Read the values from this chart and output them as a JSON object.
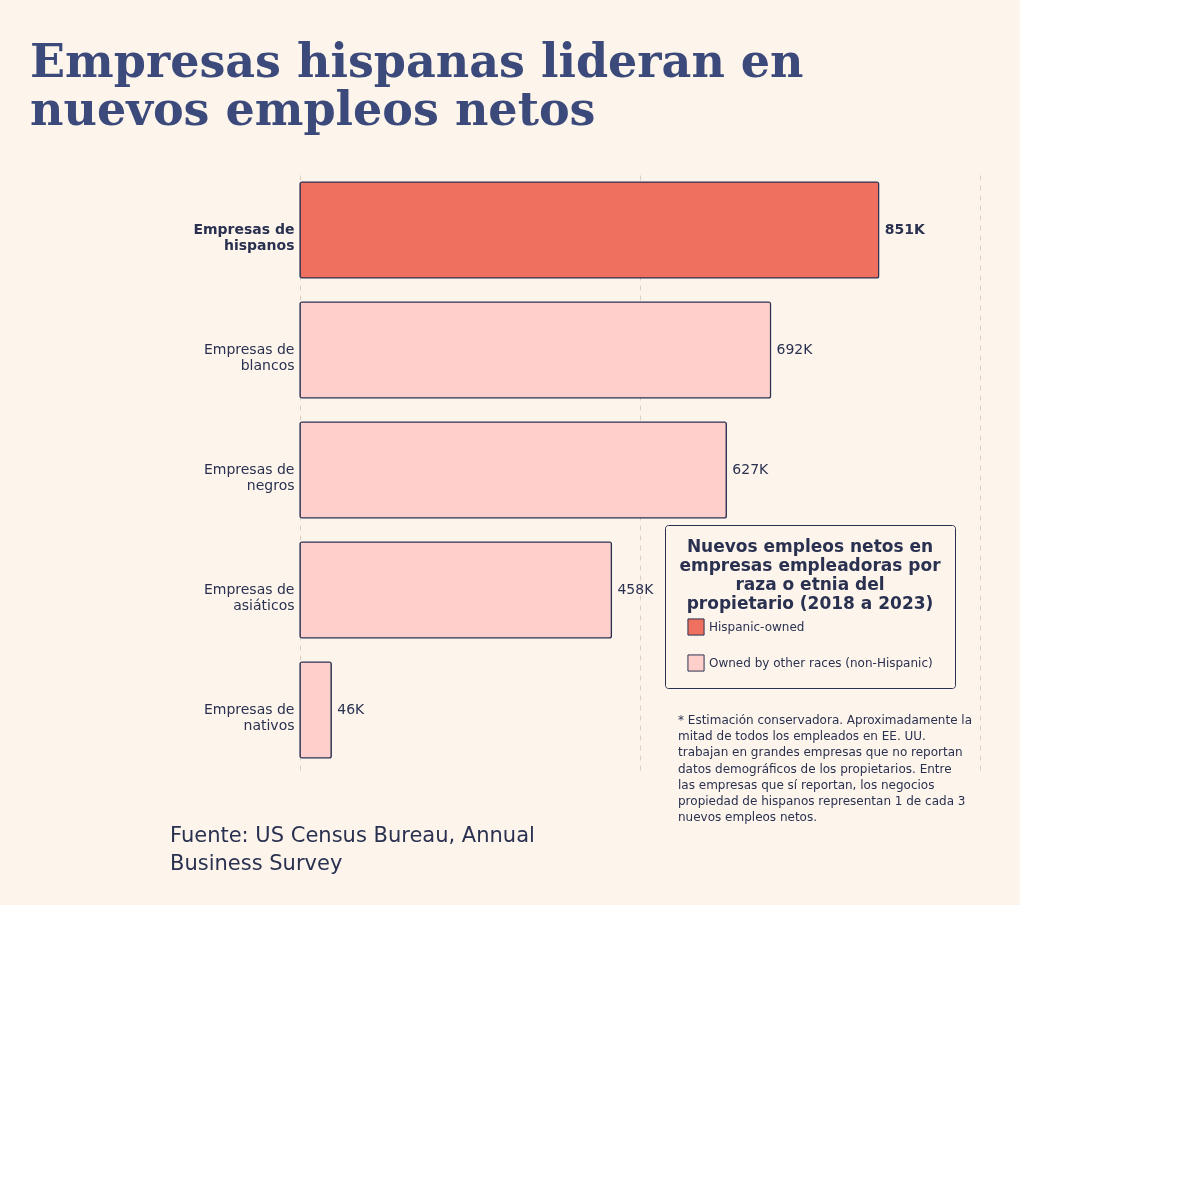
{
  "chart_data": {
    "type": "bar",
    "orientation": "horizontal",
    "title": "Empresas hispanas lideran en nuevos empleos netos",
    "categories": [
      "Empresas de hispanos",
      "Empresas de blancos",
      "Empresas de negros",
      "Empresas de asiáticos",
      "Empresas de nativos"
    ],
    "series": [
      {
        "name": "Hispanic-owned",
        "color": "#f07060",
        "values": [
          851,
          null,
          null,
          null,
          null
        ],
        "value_labels": [
          "851K",
          null,
          null,
          null,
          null
        ]
      },
      {
        "name": "Owned by other races (non-Hispanic)",
        "color": "#ffd0cb",
        "values": [
          null,
          692,
          627,
          458,
          46
        ],
        "value_labels": [
          null,
          "692K",
          "627K",
          "458K",
          "46K"
        ]
      }
    ],
    "xlim": [
      0,
      1000
    ],
    "xticks": [
      {
        "value": 0,
        "label": null
      },
      {
        "value": 500,
        "label": null
      },
      {
        "value": 1000,
        "label": null
      }
    ],
    "tick_labels": "y",
    "grid": "x",
    "legend": "bottom right",
    "legend_title": "Nuevos empleos netos en empresas empleadoras por raza o etnia del propietario (2018 a 2023)",
    "annotations": [
      "* Estimación conservadora. Aproximadamente la mitad de todos los empleados en EE. UU. trabajan en grandes empresas que no reportan datos demográficos de los propietarios. Entre las empresas que sí reportan, los negocios propiedad de hispanos representan 1 de cada 3 nuevos empleos netos.",
      "Fuente: US Census Bureau, Annual Business Survey"
    ]
  }
}
